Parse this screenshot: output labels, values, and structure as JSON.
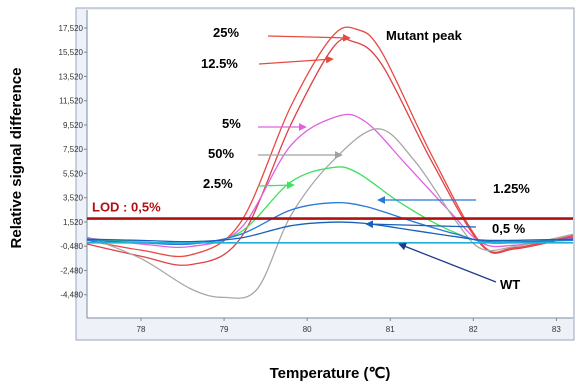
{
  "chart_data": {
    "type": "line",
    "title": "",
    "xlabel": "Temperature (℃)",
    "ylabel": "Relative signal difference",
    "xlim": [
      77.35,
      83.2
    ],
    "ylim": [
      -6400,
      19000
    ],
    "x_ticks": [
      "78",
      "79",
      "80",
      "81",
      "82",
      "83"
    ],
    "x_tick_values": [
      78,
      79,
      80,
      81,
      82,
      83
    ],
    "y_ticks": [
      "17,520",
      "15,520",
      "13,520",
      "11,520",
      "9,520",
      "7,520",
      "5,520",
      "3,520",
      "1,520",
      "-0,480",
      "-2,480",
      "-4,480"
    ],
    "y_tick_values": [
      17520,
      15520,
      13520,
      11520,
      9520,
      7520,
      5520,
      3520,
      1520,
      -480,
      -2480,
      -4480
    ],
    "grid": false,
    "series": [
      {
        "name": "25%",
        "color": "#e84a40",
        "values": [
          [
            77.35,
            0
          ],
          [
            78,
            -800
          ],
          [
            78.6,
            -1200
          ],
          [
            79.2,
            1500
          ],
          [
            79.8,
            11000
          ],
          [
            80.3,
            16800
          ],
          [
            80.6,
            17400
          ],
          [
            80.9,
            15500
          ],
          [
            81.5,
            7000
          ],
          [
            82.1,
            -300
          ],
          [
            82.5,
            -600
          ],
          [
            83.2,
            400
          ]
        ]
      },
      {
        "name": "12.5%",
        "color": "#e04048",
        "values": [
          [
            77.35,
            -300
          ],
          [
            78,
            -1300
          ],
          [
            78.6,
            -2000
          ],
          [
            79.2,
            200
          ],
          [
            79.8,
            9500
          ],
          [
            80.3,
            15800
          ],
          [
            80.55,
            16400
          ],
          [
            80.9,
            14500
          ],
          [
            81.5,
            6500
          ],
          [
            82.1,
            -400
          ],
          [
            82.5,
            -700
          ],
          [
            83.2,
            300
          ]
        ]
      },
      {
        "name": "5%",
        "color": "#e060e0",
        "values": [
          [
            77.35,
            200
          ],
          [
            78,
            -300
          ],
          [
            78.6,
            -500
          ],
          [
            79.2,
            1000
          ],
          [
            79.8,
            7800
          ],
          [
            80.35,
            10200
          ],
          [
            80.7,
            9800
          ],
          [
            81.2,
            6200
          ],
          [
            81.7,
            2500
          ],
          [
            82.1,
            -200
          ],
          [
            82.5,
            -400
          ],
          [
            83.2,
            200
          ]
        ]
      },
      {
        "name": "50%",
        "color": "#a8a8a8",
        "values": [
          [
            77.35,
            300
          ],
          [
            78,
            -1500
          ],
          [
            78.6,
            -4000
          ],
          [
            79,
            -4700
          ],
          [
            79.4,
            -4000
          ],
          [
            79.8,
            2000
          ],
          [
            80.3,
            6500
          ],
          [
            80.85,
            9200
          ],
          [
            81.3,
            6500
          ],
          [
            81.8,
            1500
          ],
          [
            82.1,
            -700
          ],
          [
            82.5,
            -500
          ],
          [
            83.2,
            500
          ]
        ]
      },
      {
        "name": "2.5%",
        "color": "#40e060",
        "values": [
          [
            77.35,
            100
          ],
          [
            78,
            -100
          ],
          [
            78.6,
            -300
          ],
          [
            79.2,
            700
          ],
          [
            79.8,
            4800
          ],
          [
            80.3,
            6000
          ],
          [
            80.6,
            5600
          ],
          [
            81.1,
            3200
          ],
          [
            81.6,
            1200
          ],
          [
            82.1,
            -100
          ],
          [
            82.5,
            -200
          ],
          [
            83.2,
            100
          ]
        ]
      },
      {
        "name": "1.25%",
        "color": "#2878d8",
        "values": [
          [
            77.35,
            0
          ],
          [
            78,
            -200
          ],
          [
            78.6,
            -300
          ],
          [
            79.2,
            500
          ],
          [
            79.8,
            2500
          ],
          [
            80.3,
            3100
          ],
          [
            80.7,
            2800
          ],
          [
            81.3,
            1500
          ],
          [
            81.8,
            500
          ],
          [
            82.2,
            -100
          ],
          [
            83.2,
            0
          ]
        ]
      },
      {
        "name": "0,5 %",
        "color": "#1860b8",
        "values": [
          [
            77.35,
            100
          ],
          [
            78,
            0
          ],
          [
            78.6,
            -100
          ],
          [
            79.2,
            200
          ],
          [
            79.8,
            1200
          ],
          [
            80.3,
            1500
          ],
          [
            80.7,
            1400
          ],
          [
            81.3,
            800
          ],
          [
            81.8,
            300
          ],
          [
            82.2,
            0
          ],
          [
            83.2,
            100
          ]
        ]
      },
      {
        "name": "WT",
        "color": "#20b0d8",
        "values": [
          [
            77.35,
            -200
          ],
          [
            79,
            -200
          ],
          [
            81,
            -200
          ],
          [
            83.2,
            -200
          ]
        ]
      }
    ],
    "reference_line": {
      "label": "LOD : 0,5%",
      "y": 1800,
      "color": "#b01010"
    },
    "annotations": [
      {
        "text": "Mutant peak",
        "x": 80.5,
        "y": 17200
      },
      {
        "text": "25%",
        "x": 79.3,
        "y": 17400
      },
      {
        "text": "12.5%",
        "x": 79.3,
        "y": 15000
      },
      {
        "text": "5%",
        "x": 79.3,
        "y": 9800
      },
      {
        "text": "50%",
        "x": 79.3,
        "y": 7200
      },
      {
        "text": "2.5%",
        "x": 79.3,
        "y": 4500
      },
      {
        "text": "1.25%",
        "x": 82.5,
        "y": 3400
      },
      {
        "text": "0,5 %",
        "x": 82.3,
        "y": 800
      },
      {
        "text": "WT",
        "x": 82.2,
        "y": -3200
      }
    ]
  }
}
